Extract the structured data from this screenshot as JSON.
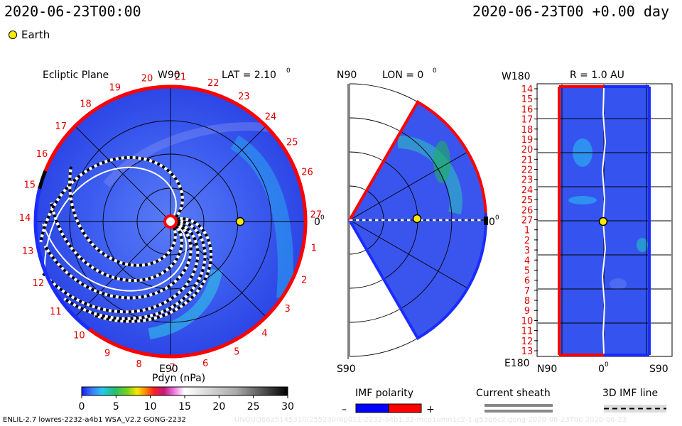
{
  "header": {
    "datetime": "2020-06-23T00:00",
    "epoch_offset": "2020-06-23T00 +0.00 day"
  },
  "legend": {
    "earth_label": "Earth",
    "earth_color": "#ffea00"
  },
  "chart_data": [
    {
      "type": "heatmap",
      "panel": "ecliptic",
      "title": "Ecliptic Plane",
      "top_label": "W90",
      "bottom_label": "E90",
      "right_label": "0",
      "right_label_sup": "0",
      "lat_label": "LAT = 2.10",
      "lat_sup": "0",
      "carrington_ticks": [
        "1",
        "2",
        "3",
        "4",
        "5",
        "6",
        "7",
        "8",
        "9",
        "10",
        "11",
        "12",
        "13",
        "14",
        "15",
        "16",
        "17",
        "18",
        "19",
        "20",
        "21",
        "22",
        "23",
        "24",
        "25",
        "26",
        "27"
      ],
      "earth_angle_deg": 0
    },
    {
      "type": "heatmap",
      "panel": "meridional",
      "top_label": "N90",
      "bottom_label": "S90",
      "lon_label": "LON = 0",
      "lon_sup": "0",
      "right_label": "0",
      "right_label_sup": "0",
      "latitude_extent_deg": [
        -60,
        60
      ]
    },
    {
      "type": "heatmap",
      "panel": "radial",
      "title": "R = 1.0 AU",
      "top_left_label": "W180",
      "bottom_left_label": "E180",
      "x_labels": {
        "left": "N90",
        "center": "0",
        "center_sup": "0",
        "right": "S90"
      },
      "y_ticks": [
        "14",
        "15",
        "16",
        "17",
        "18",
        "19",
        "20",
        "21",
        "22",
        "23",
        "24",
        "25",
        "26",
        "27",
        "1",
        "2",
        "3",
        "4",
        "5",
        "6",
        "7",
        "8",
        "9",
        "10",
        "11",
        "12",
        "13"
      ]
    }
  ],
  "colorbar": {
    "title": "Pdyn (nPa)",
    "ticks": [
      "0",
      "5",
      "10",
      "15",
      "20",
      "25",
      "30"
    ],
    "range": [
      0,
      30
    ]
  },
  "bottom_legends": {
    "imf_title": "IMF polarity",
    "imf_minus": "–",
    "imf_plus": "+",
    "minus_color": "#0000ff",
    "plus_color": "#ff0000",
    "sheath_title": "Current sheath",
    "line_title": "3D IMF line"
  },
  "footer": {
    "model": "ENLIL-2.7 lowres-2232-a4b1 WSA_V2.2 GONG-2232",
    "watermark": "UNOUO6625145310/255230r6p011-2232-a4b1.32-mcp1umn1c2-1.g53q6c2.gong-2020-06-23T00 2020-06-23"
  }
}
